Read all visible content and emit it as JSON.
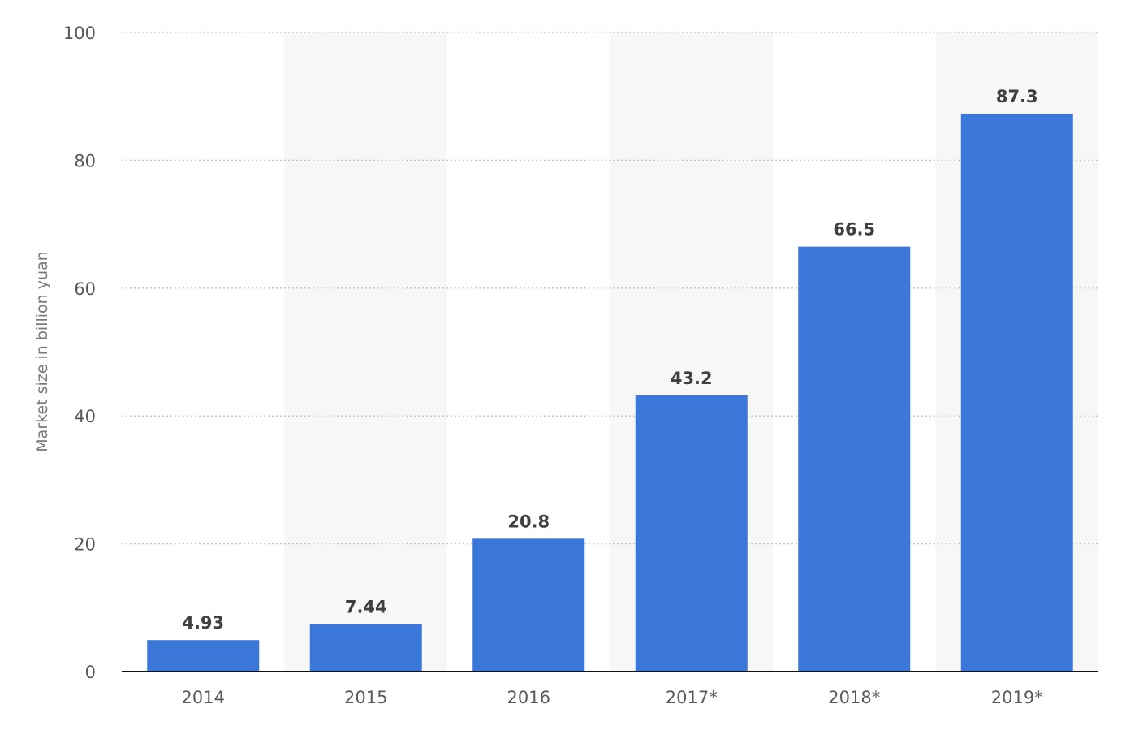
{
  "chart_data": {
    "type": "bar",
    "categories": [
      "2014",
      "2015",
      "2016",
      "2017*",
      "2018*",
      "2019*"
    ],
    "series": [
      {
        "values": [
          4.93,
          7.44,
          20.8,
          43.2,
          66.5,
          87.3
        ],
        "labels": [
          "4.93",
          "7.44",
          "20.8",
          "43.2",
          "66.5",
          "87.3"
        ]
      }
    ],
    "title": "",
    "xlabel": "",
    "ylabel": "Market size in billion yuan",
    "ylim": [
      0,
      100
    ],
    "yticks": [
      0,
      20,
      40,
      60,
      80,
      100
    ],
    "ytick_labels": [
      "0",
      "20",
      "40",
      "60",
      "80",
      "100"
    ],
    "grid": true,
    "bar_color": "#3a77d8",
    "alternating_band_color": "#f7f7f7"
  }
}
